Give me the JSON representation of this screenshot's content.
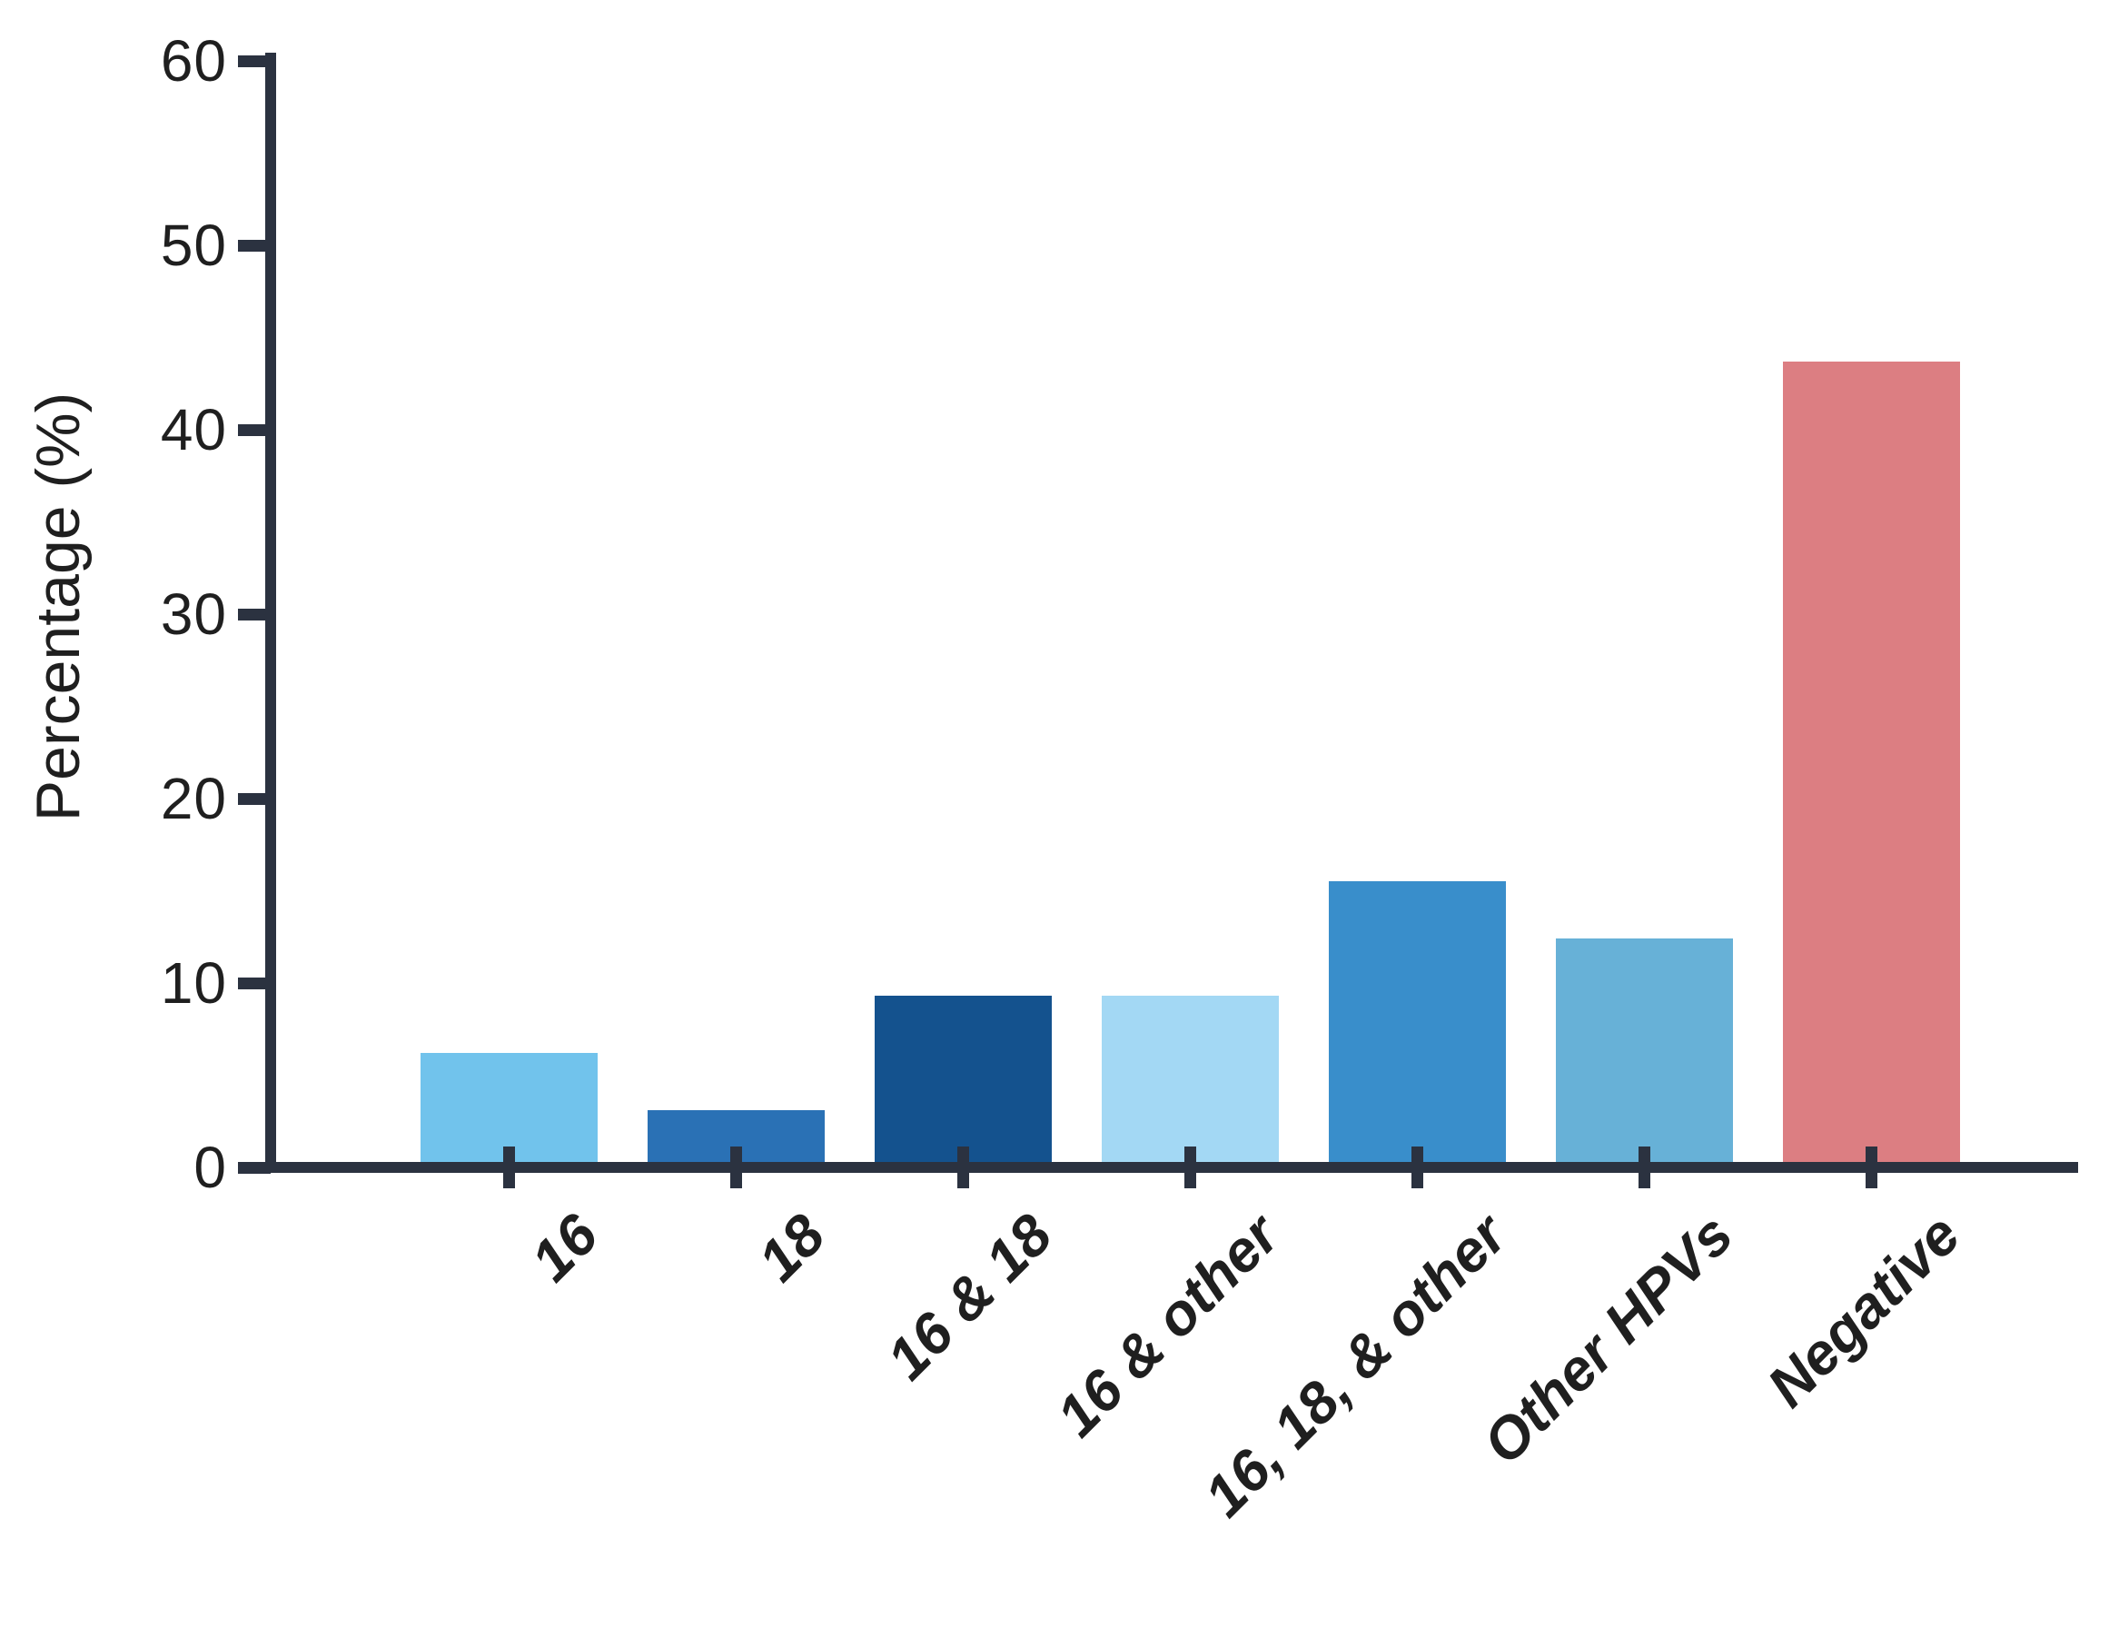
{
  "chart_data": {
    "type": "bar",
    "title": "",
    "categories": [
      "16",
      "18",
      "16 & 18",
      "16 & other",
      "16, 18, & other",
      "Other HPVs",
      "Negative"
    ],
    "values": [
      6.2,
      3.1,
      9.3,
      9.3,
      15.5,
      12.4,
      43.7
    ],
    "bar_colors": [
      "#71c3ec",
      "#2a71b5",
      "#14528e",
      "#a3d8f4",
      "#398ecb",
      "#67b1d7",
      "#dc7e82"
    ],
    "xlabel": "",
    "ylabel": "Percentage (%)",
    "ylim": [
      0,
      60
    ],
    "yticks": [
      0,
      10,
      20,
      30,
      40,
      50,
      60
    ],
    "grid": false,
    "legend_position": "none",
    "axis_color": "#2b3240",
    "text_color": "#1f1f1f",
    "background_color": "#ffffff"
  }
}
